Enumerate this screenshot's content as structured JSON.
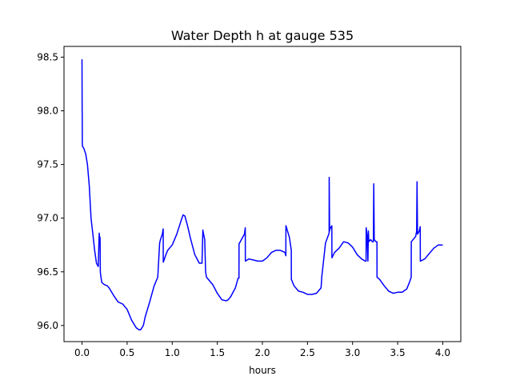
{
  "chart_data": {
    "type": "line",
    "title": "Water Depth h at gauge 535",
    "xlabel": "hours",
    "ylabel": "",
    "xlim": [
      -0.2,
      4.2
    ],
    "ylim": [
      95.85,
      98.6
    ],
    "xticks": [
      0.0,
      0.5,
      1.0,
      1.5,
      2.0,
      2.5,
      3.0,
      3.5,
      4.0
    ],
    "xtick_labels": [
      "0.0",
      "0.5",
      "1.0",
      "1.5",
      "2.0",
      "2.5",
      "3.0",
      "3.5",
      "4.0"
    ],
    "yticks": [
      96.0,
      96.5,
      97.0,
      97.5,
      98.0,
      98.5
    ],
    "ytick_labels": [
      "96.0",
      "96.5",
      "97.0",
      "97.5",
      "98.0",
      "98.5"
    ],
    "grid": false,
    "legend": "none",
    "series": [
      {
        "color": "#0000ff",
        "x": [
          0.0,
          0.001,
          0.002,
          0.003,
          0.005,
          0.02,
          0.04,
          0.06,
          0.08,
          0.1,
          0.12,
          0.14,
          0.16,
          0.18,
          0.19,
          0.195,
          0.2,
          0.203,
          0.205,
          0.21,
          0.22,
          0.25,
          0.28,
          0.3,
          0.35,
          0.4,
          0.45,
          0.5,
          0.55,
          0.6,
          0.63,
          0.65,
          0.68,
          0.7,
          0.75,
          0.8,
          0.84,
          0.86,
          0.861,
          0.87,
          0.89,
          0.9,
          0.901,
          0.93,
          0.95,
          1.0,
          1.05,
          1.1,
          1.12,
          1.14,
          1.17,
          1.2,
          1.25,
          1.3,
          1.33,
          1.34,
          1.341,
          1.36,
          1.37,
          1.38,
          1.45,
          1.5,
          1.55,
          1.6,
          1.62,
          1.65,
          1.7,
          1.73,
          1.74,
          1.741,
          1.8,
          1.81,
          1.811,
          1.85,
          1.9,
          1.95,
          2.0,
          2.05,
          2.1,
          2.15,
          2.2,
          2.25,
          2.26,
          2.261,
          2.3,
          2.32,
          2.321,
          2.35,
          2.4,
          2.45,
          2.5,
          2.55,
          2.6,
          2.65,
          2.66,
          2.661,
          2.7,
          2.74,
          2.741,
          2.745,
          2.75,
          2.77,
          2.771,
          2.8,
          2.85,
          2.9,
          2.95,
          3.0,
          3.05,
          3.1,
          3.14,
          3.15,
          3.151,
          3.16,
          3.17,
          3.175,
          3.18,
          3.2,
          3.22,
          3.23,
          3.235,
          3.24,
          3.26,
          3.27,
          3.271,
          3.3,
          3.35,
          3.4,
          3.45,
          3.5,
          3.55,
          3.6,
          3.63,
          3.65,
          3.651,
          3.7,
          3.71,
          3.715,
          3.72,
          3.74,
          3.75,
          3.751,
          3.8,
          3.85,
          3.9,
          3.95,
          4.0
        ],
        "y": [
          98.48,
          97.99,
          97.97,
          97.7,
          97.67,
          97.65,
          97.6,
          97.5,
          97.3,
          97.0,
          96.85,
          96.7,
          96.58,
          96.55,
          96.86,
          96.82,
          96.82,
          96.5,
          96.48,
          96.45,
          96.4,
          96.38,
          96.37,
          96.35,
          96.28,
          96.22,
          96.2,
          96.15,
          96.05,
          95.98,
          95.96,
          95.96,
          96.0,
          96.08,
          96.22,
          96.37,
          96.45,
          96.76,
          96.77,
          96.8,
          96.85,
          96.9,
          96.59,
          96.66,
          96.7,
          96.75,
          96.85,
          96.98,
          97.03,
          97.02,
          96.93,
          96.82,
          96.66,
          96.58,
          96.58,
          96.89,
          96.88,
          96.8,
          96.5,
          96.45,
          96.38,
          96.3,
          96.24,
          96.23,
          96.24,
          96.27,
          96.35,
          96.44,
          96.44,
          96.76,
          96.85,
          96.91,
          96.6,
          96.62,
          96.61,
          96.6,
          96.6,
          96.63,
          96.68,
          96.7,
          96.7,
          96.68,
          96.65,
          96.93,
          96.82,
          96.7,
          96.43,
          96.37,
          96.32,
          96.31,
          96.29,
          96.29,
          96.3,
          96.35,
          96.47,
          96.47,
          96.77,
          96.86,
          97.38,
          96.88,
          96.9,
          96.93,
          96.63,
          96.68,
          96.72,
          96.78,
          96.77,
          96.73,
          96.66,
          96.62,
          96.6,
          96.6,
          96.91,
          96.85,
          96.6,
          96.88,
          96.78,
          96.8,
          96.78,
          96.78,
          97.32,
          96.8,
          96.78,
          96.78,
          96.45,
          96.43,
          96.37,
          96.32,
          96.3,
          96.31,
          96.31,
          96.34,
          96.4,
          96.45,
          96.78,
          96.83,
          96.88,
          97.34,
          96.85,
          96.88,
          96.92,
          96.6,
          96.62,
          96.67,
          96.72,
          96.75,
          96.75
        ]
      }
    ]
  }
}
